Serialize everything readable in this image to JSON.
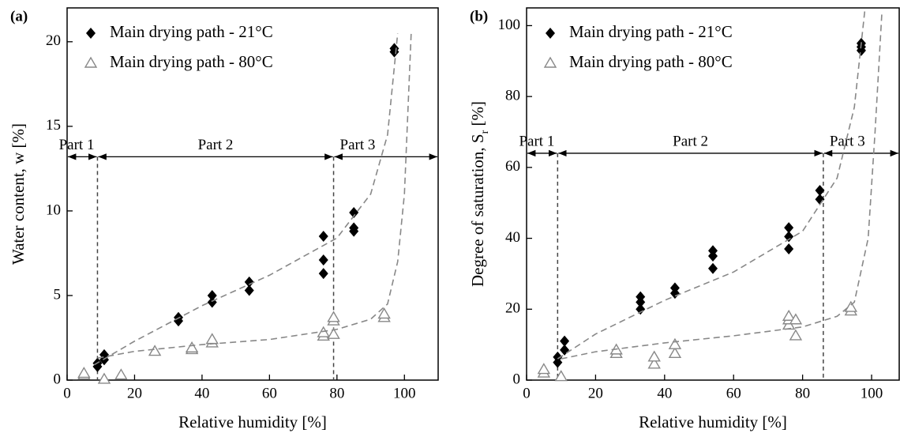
{
  "chart_data": [
    {
      "type": "scatter",
      "label": "(a)",
      "xlabel": "Relative humidity [%]",
      "ylabel": "Water content, w [%]",
      "xlim": [
        0,
        110
      ],
      "xticks": [
        0,
        20,
        40,
        60,
        80,
        100
      ],
      "ylim": [
        0,
        22
      ],
      "yticks": [
        0,
        5,
        10,
        15,
        20
      ],
      "series": [
        {
          "name": "Main drying path - 21°C",
          "color": "#000000",
          "marker": "diamond",
          "x": [
            9,
            9,
            11,
            11,
            33,
            33,
            43,
            43,
            54,
            54,
            76,
            76,
            76,
            85,
            85,
            85,
            97,
            97
          ],
          "values": [
            0.8,
            1.0,
            1.2,
            1.5,
            3.5,
            3.7,
            4.6,
            5.0,
            5.3,
            5.8,
            6.3,
            7.1,
            8.5,
            8.8,
            9.0,
            9.9,
            19.4,
            19.6
          ]
        },
        {
          "name": "Main drying path - 80°C",
          "color": "#888888",
          "marker": "triangle",
          "x": [
            5,
            5,
            11,
            16,
            26,
            37,
            37,
            43,
            43,
            76,
            76,
            79,
            79,
            79,
            94,
            94
          ],
          "values": [
            0.3,
            0.4,
            0.05,
            0.3,
            1.7,
            1.8,
            1.9,
            2.2,
            2.4,
            2.6,
            2.8,
            2.7,
            3.5,
            3.7,
            3.7,
            3.9
          ]
        },
        {
          "color": "#888888",
          "style": "dashed",
          "x": [
            8,
            20,
            40,
            60,
            80,
            90,
            95,
            98
          ],
          "values": [
            0.9,
            2.3,
            4.4,
            6.2,
            8.4,
            11,
            14.5,
            20.5
          ]
        },
        {
          "color": "#888888",
          "style": "dashed",
          "x": [
            9,
            20,
            40,
            60,
            80,
            90,
            95,
            98,
            100,
            102
          ],
          "values": [
            1.3,
            1.7,
            2.1,
            2.4,
            3.0,
            3.6,
            4.5,
            7,
            11,
            20.5
          ]
        }
      ],
      "parts": {
        "y": 13.2,
        "boundaries": [
          9,
          79
        ],
        "labels": [
          "Part 1",
          "Part 2",
          "Part 3"
        ]
      }
    },
    {
      "type": "scatter",
      "label": "(b)",
      "xlabel": "Relative humidity [%]",
      "ylabel": "Degree of saturation, S",
      "ylabel_sub": "r",
      "ylabel_unit": " [%]",
      "xlim": [
        0,
        108
      ],
      "xticks": [
        0,
        20,
        40,
        60,
        80,
        100
      ],
      "ylim": [
        0,
        105
      ],
      "yticks": [
        0,
        20,
        40,
        60,
        80,
        100
      ],
      "series": [
        {
          "name": "Main drying path - 21°C",
          "color": "#000000",
          "marker": "diamond",
          "x": [
            9,
            9,
            11,
            11,
            33,
            33,
            33,
            43,
            43,
            54,
            54,
            54,
            76,
            76,
            76,
            85,
            85,
            97,
            97,
            97
          ],
          "values": [
            5,
            6.5,
            8.5,
            11,
            20,
            22,
            23.5,
            24.5,
            26,
            31.5,
            35,
            36.5,
            37,
            40.5,
            43,
            51,
            53.5,
            93,
            94,
            95
          ]
        },
        {
          "name": "Main drying path - 80°C",
          "color": "#888888",
          "marker": "triangle",
          "x": [
            5,
            5,
            10,
            26,
            26,
            37,
            37,
            43,
            43,
            76,
            76,
            76,
            78,
            78,
            94,
            94
          ],
          "values": [
            2,
            3,
            1,
            7.5,
            8.5,
            4.5,
            6.5,
            7.5,
            10,
            15.5,
            17,
            18,
            12.5,
            17,
            19.5,
            20.5
          ]
        },
        {
          "color": "#888888",
          "style": "dashed",
          "x": [
            9,
            20,
            40,
            60,
            80,
            90,
            95,
            97,
            98
          ],
          "values": [
            6,
            13,
            22.5,
            30.5,
            42,
            57,
            77,
            95,
            104
          ]
        },
        {
          "color": "#888888",
          "style": "dashed",
          "x": [
            10,
            20,
            40,
            60,
            80,
            90,
            95,
            99,
            101,
            103
          ],
          "values": [
            6,
            8,
            10.5,
            12.5,
            15,
            18,
            22,
            40,
            70,
            104
          ]
        }
      ],
      "parts": {
        "y": 64,
        "boundaries": [
          9,
          86
        ],
        "labels": [
          "Part 1",
          "Part 2",
          "Part 3"
        ]
      }
    }
  ]
}
